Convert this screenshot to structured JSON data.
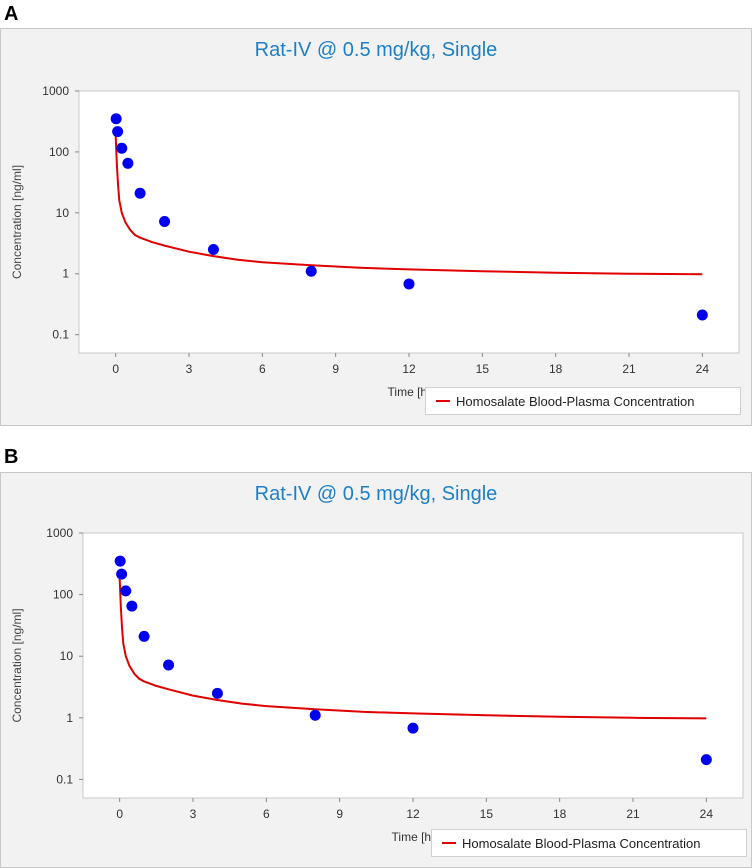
{
  "panels": [
    {
      "label": "A"
    },
    {
      "label": "B"
    }
  ],
  "colors": {
    "line": "#e00000",
    "points": "#0000ee",
    "title": "#1f7fc4"
  },
  "chart_data": [
    {
      "type": "scatter",
      "title": "Rat-IV @ 0.5 mg/kg, Single",
      "xlabel": "Time [h]",
      "ylabel": "Concentration [ng/ml]",
      "xlim": [
        -1.5,
        25.5
      ],
      "ylim": [
        0.05,
        1000
      ],
      "yscale": "log",
      "xticks": [
        0,
        3,
        6,
        9,
        12,
        15,
        18,
        21,
        24
      ],
      "yticks": [
        0.1,
        1,
        10,
        100,
        1000
      ],
      "ytick_labels": [
        "0.1",
        "1",
        "10",
        "100",
        "1000"
      ],
      "legend": "Homosalate Blood-Plasma Concentration",
      "observed": {
        "x": [
          0.02,
          0.08,
          0.25,
          0.5,
          1,
          2,
          4,
          8,
          12,
          24
        ],
        "y": [
          350,
          215,
          115,
          65,
          21,
          7.2,
          2.5,
          1.1,
          0.68,
          0.21
        ]
      },
      "simulated": {
        "x": [
          0,
          0.05,
          0.1,
          0.15,
          0.25,
          0.4,
          0.6,
          0.8,
          1,
          1.5,
          2,
          3,
          4,
          5,
          6,
          8,
          10,
          12,
          15,
          18,
          21,
          24
        ],
        "y": [
          180,
          60,
          28,
          16,
          10,
          7,
          5.2,
          4.3,
          3.9,
          3.3,
          2.9,
          2.3,
          1.95,
          1.7,
          1.55,
          1.38,
          1.25,
          1.18,
          1.1,
          1.04,
          1.0,
          0.98
        ]
      }
    },
    {
      "type": "scatter",
      "title": "Rat-IV @ 0.5 mg/kg, Single",
      "xlabel": "Time [h]",
      "ylabel": "Concentration [ng/ml]",
      "xlim": [
        -1.5,
        25.5
      ],
      "ylim": [
        0.05,
        1000
      ],
      "yscale": "log",
      "xticks": [
        0,
        3,
        6,
        9,
        12,
        15,
        18,
        21,
        24
      ],
      "yticks": [
        0.1,
        1,
        10,
        100,
        1000
      ],
      "ytick_labels": [
        "0.1",
        "1",
        "10",
        "100",
        "1000"
      ],
      "legend": "Homosalate Blood-Plasma Concentration",
      "observed": {
        "x": [
          0.02,
          0.08,
          0.25,
          0.5,
          1,
          2,
          4,
          8,
          12,
          24
        ],
        "y": [
          350,
          215,
          115,
          65,
          21,
          7.2,
          2.5,
          1.1,
          0.68,
          0.21
        ]
      },
      "simulated": {
        "x": [
          0,
          0.05,
          0.1,
          0.15,
          0.25,
          0.4,
          0.6,
          0.8,
          1,
          1.5,
          2,
          3,
          4,
          5,
          6,
          8,
          10,
          12,
          15,
          18,
          21,
          24
        ],
        "y": [
          180,
          60,
          28,
          16,
          10,
          7,
          5.2,
          4.3,
          3.9,
          3.3,
          2.9,
          2.3,
          1.95,
          1.7,
          1.55,
          1.38,
          1.25,
          1.18,
          1.1,
          1.04,
          1.0,
          0.98
        ]
      }
    }
  ]
}
